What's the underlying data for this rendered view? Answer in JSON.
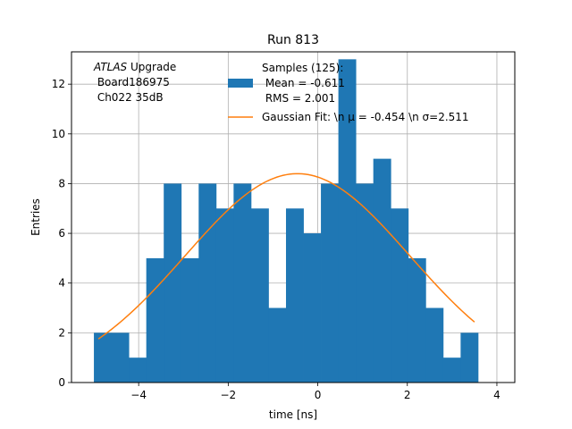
{
  "chart_data": {
    "type": "bar",
    "title": "Run 813",
    "xlabel": "time [ns]",
    "ylabel": "Entries",
    "xlim": [
      -5.5,
      4.4
    ],
    "ylim": [
      0,
      13.3
    ],
    "grid": true,
    "bin_edges": [
      -5.0,
      -4.61,
      -4.22,
      -3.83,
      -3.44,
      -3.05,
      -2.66,
      -2.27,
      -1.88,
      -1.49,
      -1.1,
      -0.71,
      -0.32,
      0.07,
      0.46,
      0.85,
      1.24,
      1.63,
      2.02,
      2.41,
      2.8,
      3.19,
      3.58
    ],
    "counts": [
      2,
      2,
      1,
      5,
      8,
      5,
      8,
      7,
      8,
      7,
      3,
      7,
      6,
      8,
      13,
      8,
      9,
      7,
      5,
      3,
      1,
      2
    ],
    "bar_color": "#1f77b4",
    "fit": {
      "type": "gaussian",
      "mu": -0.454,
      "sigma": 2.511,
      "amplitude": 8.4,
      "x_range": [
        -4.9,
        3.5
      ],
      "color": "#ff7f0e"
    },
    "x_ticks": [
      -4,
      -2,
      0,
      2,
      4
    ],
    "x_tick_labels": [
      "−4",
      "−2",
      "0",
      "2",
      "4"
    ],
    "y_ticks": [
      0,
      2,
      4,
      6,
      8,
      10,
      12
    ],
    "y_tick_labels": [
      "0",
      "2",
      "4",
      "6",
      "8",
      "10",
      "12"
    ],
    "legend": {
      "position": "top-right",
      "hist_lines": [
        "Samples (125):",
        " Mean = -0.611",
        " RMS = 2.001"
      ],
      "fit_label": "Gaussian Fit: \\n μ = -0.454 \\n σ=2.511"
    },
    "annotation": {
      "experiment": "ATLAS",
      "experiment_suffix": " Upgrade",
      "board": " Board186975",
      "channel": " Ch022 35dB"
    }
  }
}
